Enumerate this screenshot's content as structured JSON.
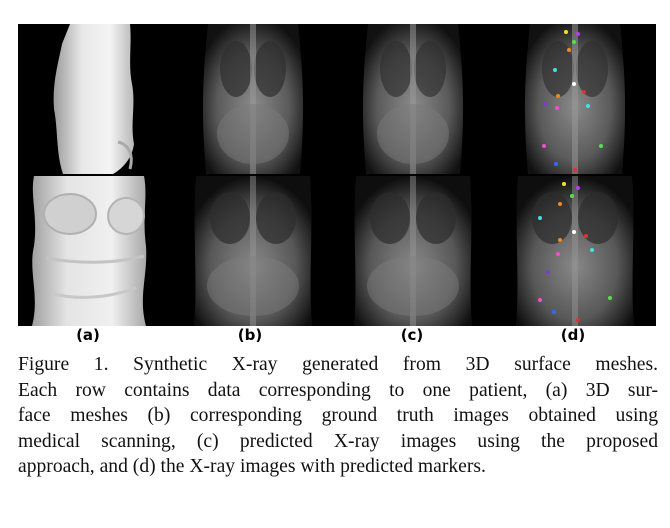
{
  "figure": {
    "panel_labels": [
      "(a)",
      "(b)",
      "(c)",
      "(d)"
    ],
    "rows": 2,
    "columns": [
      {
        "label": "(a)",
        "content": "3D surface mesh"
      },
      {
        "label": "(b)",
        "content": "ground truth X-ray"
      },
      {
        "label": "(c)",
        "content": "predicted X-ray"
      },
      {
        "label": "(d)",
        "content": "X-ray with predicted markers"
      }
    ],
    "marker_colors": [
      "#f7e21a",
      "#b43cf0",
      "#52e34a",
      "#f08a1c",
      "#3fe3e3",
      "#ffffff",
      "#e0322f",
      "#2e6bff",
      "#f24fd0",
      "#7a3bd6"
    ]
  },
  "caption": {
    "lines": [
      "Figure 1. Synthetic X-ray generated from 3D surface meshes.",
      "Each row contains data corresponding to one patient, (a) 3D sur-",
      "face meshes (b) corresponding ground truth images obtained using",
      "medical scanning, (c) predicted X-ray images using the proposed",
      "approach, and (d) the X-ray images with predicted markers."
    ]
  }
}
